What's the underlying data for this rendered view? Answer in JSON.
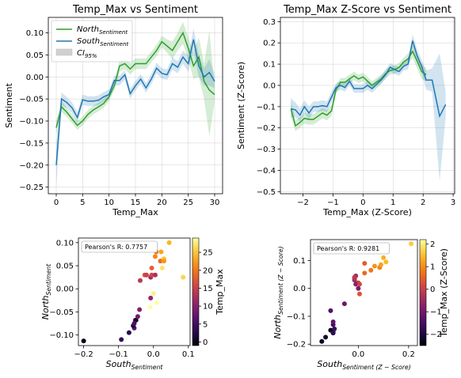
{
  "colors": {
    "north": "#2ca02c",
    "south": "#1f77b4",
    "ci": "#d0d0d0"
  },
  "chart_data": [
    {
      "id": "tl",
      "type": "line",
      "title": "Temp_Max vs Sentiment",
      "xlabel": "Temp_Max",
      "ylabel": "Sentiment",
      "xlim": [
        -1.5,
        31.5
      ],
      "ylim": [
        -0.265,
        0.135
      ],
      "xticks": [
        0,
        5,
        10,
        15,
        20,
        25,
        30
      ],
      "yticks": [
        -0.25,
        -0.2,
        -0.15,
        -0.1,
        -0.05,
        0.0,
        0.05,
        0.1
      ],
      "ytick_labels": [
        "−0.25",
        "−0.20",
        "−0.15",
        "−0.10",
        "−0.05",
        "0.00",
        "0.05",
        "0.10"
      ],
      "xtick_labels": [
        "0",
        "5",
        "10",
        "15",
        "20",
        "25",
        "30"
      ],
      "grid": true,
      "legend": {
        "placement": "top-left",
        "north_main": "North",
        "north_sub": "Sentiment",
        "south_main": "South",
        "south_sub": "Sentiment",
        "ci_main": "CI",
        "ci_sub": "95%"
      },
      "series": [
        {
          "key": "north",
          "x": [
            0,
            1,
            2,
            3,
            4,
            5,
            6,
            7,
            8,
            9,
            10,
            11,
            12,
            13,
            14,
            15,
            16,
            17,
            18,
            19,
            20,
            21,
            22,
            23,
            24,
            25,
            26,
            27,
            28,
            29,
            30
          ],
          "y": [
            -0.115,
            -0.068,
            -0.08,
            -0.095,
            -0.11,
            -0.1,
            -0.085,
            -0.075,
            -0.068,
            -0.06,
            -0.045,
            -0.02,
            0.025,
            0.03,
            0.018,
            0.03,
            0.03,
            0.03,
            0.045,
            0.06,
            0.08,
            0.07,
            0.06,
            0.08,
            0.1,
            0.065,
            0.025,
            0.045,
            -0.01,
            -0.03,
            -0.04
          ],
          "ci_low": [
            -0.13,
            -0.08,
            -0.09,
            -0.105,
            -0.12,
            -0.11,
            -0.095,
            -0.085,
            -0.078,
            -0.07,
            -0.055,
            -0.03,
            0.012,
            0.018,
            0.005,
            0.018,
            0.018,
            0.018,
            0.033,
            0.047,
            0.067,
            0.055,
            0.04,
            0.06,
            0.075,
            0.04,
            -0.005,
            0.0,
            -0.05,
            -0.135,
            -0.055
          ],
          "ci_high": [
            -0.1,
            -0.055,
            -0.07,
            -0.085,
            -0.1,
            -0.09,
            -0.075,
            -0.065,
            -0.058,
            -0.05,
            -0.035,
            -0.01,
            0.038,
            0.042,
            0.031,
            0.042,
            0.042,
            0.042,
            0.057,
            0.073,
            0.093,
            0.085,
            0.08,
            0.1,
            0.125,
            0.09,
            0.055,
            0.09,
            0.03,
            0.105,
            -0.025
          ]
        },
        {
          "key": "south",
          "x": [
            0,
            1,
            2,
            3,
            4,
            5,
            6,
            7,
            8,
            9,
            10,
            11,
            12,
            13,
            14,
            15,
            16,
            17,
            18,
            19,
            20,
            21,
            22,
            23,
            24,
            25,
            26,
            27,
            28,
            29,
            30
          ],
          "y": [
            -0.2,
            -0.05,
            -0.058,
            -0.07,
            -0.092,
            -0.052,
            -0.055,
            -0.055,
            -0.053,
            -0.045,
            -0.04,
            -0.008,
            -0.008,
            0.005,
            -0.038,
            -0.02,
            -0.005,
            -0.025,
            -0.005,
            0.02,
            0.008,
            0.005,
            0.03,
            0.022,
            0.045,
            0.03,
            0.085,
            0.025,
            0.0,
            0.01,
            -0.01
          ],
          "ci_low": [
            -0.25,
            -0.065,
            -0.07,
            -0.082,
            -0.104,
            -0.064,
            -0.066,
            -0.066,
            -0.064,
            -0.056,
            -0.051,
            -0.019,
            -0.019,
            -0.006,
            -0.049,
            -0.031,
            -0.016,
            -0.036,
            -0.016,
            0.008,
            -0.004,
            -0.007,
            0.016,
            0.008,
            0.03,
            0.012,
            0.06,
            0.0,
            -0.02,
            -0.02,
            -0.025
          ],
          "ci_high": [
            -0.15,
            -0.035,
            -0.046,
            -0.058,
            -0.08,
            -0.04,
            -0.044,
            -0.044,
            -0.042,
            -0.034,
            -0.029,
            0.003,
            0.003,
            0.016,
            -0.027,
            -0.009,
            0.006,
            -0.014,
            0.006,
            0.032,
            0.02,
            0.017,
            0.044,
            0.036,
            0.06,
            0.048,
            0.11,
            0.05,
            0.02,
            0.04,
            0.005
          ]
        }
      ]
    },
    {
      "id": "tr",
      "type": "line",
      "title": "Temp_Max Z-Score vs Sentiment",
      "xlabel": "Temp_Max (Z-Score)",
      "ylabel": "Sentiment (Z-Score)",
      "xlim": [
        -2.75,
        3.05
      ],
      "ylim": [
        -0.51,
        0.32
      ],
      "xticks": [
        -2,
        -1,
        0,
        1,
        2,
        3
      ],
      "xtick_labels": [
        "−2",
        "−1",
        "0",
        "1",
        "2",
        "3"
      ],
      "yticks": [
        -0.5,
        -0.4,
        -0.3,
        -0.2,
        -0.1,
        0.0,
        0.1,
        0.2,
        0.3
      ],
      "ytick_labels": [
        "−0.5",
        "−0.4",
        "−0.3",
        "−0.2",
        "−0.1",
        "0.0",
        "0.1",
        "0.2",
        "0.3"
      ],
      "grid": true,
      "series": [
        {
          "key": "north",
          "x": [
            -2.4,
            -2.25,
            -2.1,
            -1.95,
            -1.8,
            -1.65,
            -1.5,
            -1.35,
            -1.2,
            -1.05,
            -0.9,
            -0.75,
            -0.6,
            -0.45,
            -0.3,
            -0.15,
            0.0,
            0.15,
            0.3,
            0.45,
            0.6,
            0.75,
            0.9,
            1.05,
            1.2,
            1.35,
            1.5,
            1.65,
            1.8,
            1.95,
            2.1
          ],
          "y": [
            -0.11,
            -0.19,
            -0.175,
            -0.155,
            -0.16,
            -0.16,
            -0.145,
            -0.13,
            -0.14,
            -0.12,
            -0.02,
            0.015,
            0.015,
            0.03,
            0.045,
            0.03,
            0.04,
            0.02,
            0.0,
            0.015,
            0.03,
            0.055,
            0.07,
            0.075,
            0.085,
            0.11,
            0.125,
            0.16,
            0.115,
            0.065,
            0.05
          ],
          "ci_low": [
            -0.15,
            -0.215,
            -0.2,
            -0.18,
            -0.185,
            -0.185,
            -0.17,
            -0.155,
            -0.165,
            -0.145,
            -0.04,
            -0.005,
            -0.005,
            0.01,
            0.025,
            0.01,
            0.02,
            0.0,
            -0.02,
            -0.005,
            0.01,
            0.035,
            0.05,
            0.055,
            0.065,
            0.09,
            0.1,
            0.13,
            0.08,
            0.03,
            0.02
          ],
          "ci_high": [
            -0.07,
            -0.165,
            -0.15,
            -0.13,
            -0.135,
            -0.135,
            -0.12,
            -0.105,
            -0.115,
            -0.095,
            0.0,
            0.035,
            0.035,
            0.05,
            0.065,
            0.05,
            0.06,
            0.04,
            0.02,
            0.035,
            0.05,
            0.075,
            0.09,
            0.095,
            0.105,
            0.13,
            0.15,
            0.19,
            0.15,
            0.1,
            0.08
          ]
        },
        {
          "key": "south",
          "x": [
            -2.4,
            -2.25,
            -2.1,
            -1.95,
            -1.8,
            -1.65,
            -1.5,
            -1.35,
            -1.2,
            -1.05,
            -0.9,
            -0.75,
            -0.6,
            -0.45,
            -0.3,
            -0.15,
            0.0,
            0.15,
            0.3,
            0.45,
            0.6,
            0.75,
            0.9,
            1.05,
            1.2,
            1.35,
            1.5,
            1.65,
            1.8,
            1.95,
            2.1,
            2.3,
            2.55,
            2.75
          ],
          "y": [
            -0.11,
            -0.115,
            -0.14,
            -0.1,
            -0.13,
            -0.1,
            -0.1,
            -0.095,
            -0.1,
            -0.055,
            -0.01,
            0.0,
            -0.01,
            0.02,
            -0.015,
            -0.015,
            -0.015,
            0.0,
            -0.015,
            0.005,
            0.025,
            0.05,
            0.085,
            0.075,
            0.065,
            0.09,
            0.1,
            0.21,
            0.14,
            0.09,
            0.025,
            0.025,
            -0.145,
            -0.09
          ],
          "ci_low": [
            -0.15,
            -0.15,
            -0.17,
            -0.13,
            -0.16,
            -0.125,
            -0.125,
            -0.12,
            -0.125,
            -0.08,
            -0.03,
            -0.02,
            -0.03,
            0.0,
            -0.035,
            -0.035,
            -0.035,
            -0.02,
            -0.035,
            -0.015,
            0.005,
            0.03,
            0.065,
            0.055,
            0.045,
            0.07,
            0.075,
            0.18,
            0.11,
            0.06,
            -0.02,
            -0.03,
            -0.45,
            -0.15
          ],
          "ci_high": [
            -0.06,
            -0.08,
            -0.11,
            -0.07,
            -0.1,
            -0.075,
            -0.075,
            -0.07,
            -0.075,
            -0.03,
            0.01,
            0.02,
            0.01,
            0.04,
            0.005,
            0.005,
            0.005,
            0.02,
            0.005,
            0.025,
            0.045,
            0.07,
            0.105,
            0.095,
            0.085,
            0.11,
            0.125,
            0.24,
            0.17,
            0.12,
            0.07,
            0.08,
            0.15,
            -0.03
          ]
        }
      ]
    },
    {
      "id": "bl",
      "type": "scatter",
      "xlabel_main": "South",
      "xlabel_sub": "Sentiment",
      "ylabel_main": "North",
      "ylabel_sub": "Sentiment",
      "xlim": [
        -0.215,
        0.105
      ],
      "ylim": [
        -0.123,
        0.11
      ],
      "xticks": [
        -0.2,
        -0.1,
        0.0,
        0.1
      ],
      "xtick_labels": [
        "−0.2",
        "−0.1",
        "0.0",
        "0.1"
      ],
      "yticks": [
        -0.1,
        -0.05,
        0.0,
        0.05,
        0.1
      ],
      "ytick_labels": [
        "−0.10",
        "−0.05",
        "0.00",
        "0.05",
        "0.10"
      ],
      "annotation": "Pearson's R: 0.7757",
      "colorbar": {
        "label": "Temp_Max",
        "min": -1,
        "max": 29,
        "ticks": [
          0,
          5,
          10,
          15,
          20,
          25
        ],
        "tick_labels": [
          "0",
          "5",
          "10",
          "15",
          "20",
          "25"
        ],
        "colormap": "inferno"
      },
      "points": [
        {
          "x": -0.2,
          "y": -0.113,
          "c": 0
        },
        {
          "x": -0.092,
          "y": -0.11,
          "c": 4
        },
        {
          "x": -0.07,
          "y": -0.095,
          "c": 3
        },
        {
          "x": -0.055,
          "y": -0.085,
          "c": 7
        },
        {
          "x": -0.058,
          "y": -0.08,
          "c": 2
        },
        {
          "x": -0.052,
          "y": -0.068,
          "c": 8
        },
        {
          "x": -0.05,
          "y": -0.068,
          "c": 1
        },
        {
          "x": -0.045,
          "y": -0.06,
          "c": 9
        },
        {
          "x": -0.04,
          "y": -0.045,
          "c": 10
        },
        {
          "x": -0.055,
          "y": -0.075,
          "c": 6
        },
        {
          "x": -0.038,
          "y": 0.018,
          "c": 14
        },
        {
          "x": -0.025,
          "y": 0.03,
          "c": 17
        },
        {
          "x": -0.02,
          "y": 0.03,
          "c": 15
        },
        {
          "x": -0.008,
          "y": -0.02,
          "c": 11
        },
        {
          "x": -0.008,
          "y": 0.025,
          "c": 12
        },
        {
          "x": -0.005,
          "y": 0.03,
          "c": 16
        },
        {
          "x": -0.005,
          "y": 0.045,
          "c": 18
        },
        {
          "x": 0.005,
          "y": 0.03,
          "c": 13
        },
        {
          "x": 0.008,
          "y": 0.08,
          "c": 20
        },
        {
          "x": 0.005,
          "y": 0.07,
          "c": 21
        },
        {
          "x": 0.02,
          "y": 0.06,
          "c": 19
        },
        {
          "x": 0.022,
          "y": 0.08,
          "c": 23
        },
        {
          "x": 0.03,
          "y": 0.065,
          "c": 25
        },
        {
          "x": 0.03,
          "y": 0.06,
          "c": 22
        },
        {
          "x": 0.045,
          "y": 0.1,
          "c": 24
        },
        {
          "x": 0.0,
          "y": -0.01,
          "c": 28
        },
        {
          "x": 0.01,
          "y": -0.03,
          "c": 29
        },
        {
          "x": 0.025,
          "y": 0.045,
          "c": 27
        },
        {
          "x": -0.01,
          "y": -0.04,
          "c": 30
        },
        {
          "x": 0.085,
          "y": 0.025,
          "c": 26
        }
      ]
    },
    {
      "id": "br",
      "type": "scatter",
      "xlabel_main": "South",
      "xlabel_sub": "Sentiment (Z − Score)",
      "ylabel_main": "North",
      "ylabel_sub": "Sentiment (Z − Score)",
      "xlim": [
        -0.19,
        0.235
      ],
      "ylim": [
        -0.205,
        0.175
      ],
      "xticks": [
        0.0,
        0.2
      ],
      "xtick_labels": [
        "0.0",
        "0.2"
      ],
      "yticks": [
        -0.2,
        -0.1,
        0.0,
        0.1
      ],
      "ytick_labels": [
        "−0.2",
        "−0.1",
        "0.0",
        "0.1"
      ],
      "annotation": "Pearson's R: 0.9281",
      "colorbar": {
        "label": "Temp_Max (Z-Score)",
        "min": -2.5,
        "max": 2.2,
        "ticks": [
          -2,
          -1,
          0,
          1,
          2
        ],
        "tick_labels": [
          "−2",
          "−1",
          "0",
          "1",
          "2"
        ],
        "colormap": "inferno"
      },
      "points": [
        {
          "x": -0.145,
          "y": -0.19,
          "c": -2.25
        },
        {
          "x": -0.11,
          "y": -0.15,
          "c": -2.4
        },
        {
          "x": -0.13,
          "y": -0.175,
          "c": -2.1
        },
        {
          "x": -0.1,
          "y": -0.155,
          "c": -1.95
        },
        {
          "x": -0.1,
          "y": -0.16,
          "c": -1.8
        },
        {
          "x": -0.1,
          "y": -0.13,
          "c": -1.5
        },
        {
          "x": -0.095,
          "y": -0.145,
          "c": -1.65
        },
        {
          "x": -0.1,
          "y": -0.12,
          "c": -1.2
        },
        {
          "x": -0.11,
          "y": -0.08,
          "c": -1.35
        },
        {
          "x": -0.055,
          "y": -0.055,
          "c": -1.05
        },
        {
          "x": -0.015,
          "y": 0.03,
          "c": -0.6
        },
        {
          "x": -0.01,
          "y": 0.045,
          "c": -0.45
        },
        {
          "x": -0.015,
          "y": 0.035,
          "c": -0.3
        },
        {
          "x": -0.015,
          "y": 0.04,
          "c": -0.15
        },
        {
          "x": 0.0,
          "y": 0.02,
          "c": 0.0
        },
        {
          "x": -0.01,
          "y": 0.015,
          "c": -0.75
        },
        {
          "x": 0.005,
          "y": 0.015,
          "c": 0.15
        },
        {
          "x": 0.005,
          "y": -0.02,
          "c": 0.3
        },
        {
          "x": 0.0,
          "y": 0.0,
          "c": -0.9
        },
        {
          "x": 0.025,
          "y": 0.055,
          "c": 0.6
        },
        {
          "x": 0.025,
          "y": 0.09,
          "c": 0.45
        },
        {
          "x": 0.05,
          "y": 0.065,
          "c": 0.75
        },
        {
          "x": 0.085,
          "y": 0.075,
          "c": 0.9
        },
        {
          "x": 0.065,
          "y": 0.08,
          "c": 1.05
        },
        {
          "x": 0.09,
          "y": 0.085,
          "c": 1.2
        },
        {
          "x": 0.1,
          "y": 0.11,
          "c": 1.35
        },
        {
          "x": 0.11,
          "y": 0.095,
          "c": 1.5
        },
        {
          "x": 0.21,
          "y": 0.16,
          "c": 1.65
        }
      ]
    }
  ]
}
